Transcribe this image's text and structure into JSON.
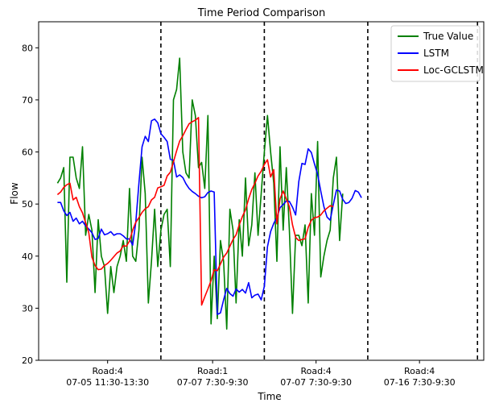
{
  "chart_data": {
    "type": "line",
    "title": "Time Period Comparison",
    "xlabel": "Time",
    "ylabel": "Flow",
    "ylim": [
      20,
      85
    ],
    "yticks": [
      20,
      30,
      40,
      50,
      60,
      70,
      80
    ],
    "xlim": [
      -6,
      136
    ],
    "grid": false,
    "legend_position": "top-right",
    "period_separators": [
      33,
      66,
      99,
      134
    ],
    "period_labels": [
      {
        "x": 16,
        "road": "Road:4",
        "time": "07-05 11:30-13:30"
      },
      {
        "x": 49.5,
        "road": "Road:1",
        "time": "07-07 7:30-9:30"
      },
      {
        "x": 82.5,
        "road": "Road:4",
        "time": "07-07 7:30-9:30"
      },
      {
        "x": 115.5,
        "road": "Road:4",
        "time": "07-16 7:30-9:30"
      }
    ],
    "series": [
      {
        "name": "True Value",
        "color": "#008000",
        "values": [
          54,
          55,
          57,
          35,
          59,
          59,
          55,
          53,
          61,
          44,
          48,
          45,
          33,
          47,
          40,
          38,
          29,
          38,
          33,
          38,
          40,
          43,
          39,
          53,
          40,
          39,
          45,
          59,
          52,
          31,
          39,
          49,
          38,
          45,
          48,
          49,
          38,
          70,
          72,
          78,
          60,
          56,
          55,
          70,
          67,
          57,
          58,
          53,
          67,
          27,
          40,
          28,
          43,
          39,
          26,
          49,
          45,
          31,
          47,
          40,
          55,
          42,
          46,
          56,
          44,
          52,
          60,
          67,
          60,
          54,
          39,
          61,
          45,
          57,
          45,
          29,
          44,
          44,
          42,
          46,
          31,
          52,
          44,
          62,
          36,
          40,
          43,
          45,
          55,
          59,
          43,
          52
        ],
        "x0": 0
      },
      {
        "name": "LSTM",
        "color": "#0000ff",
        "values": [
          50.3,
          50.3,
          48.7,
          47.8,
          48.4,
          46.7,
          47.3,
          46.2,
          46.7,
          45.8,
          45.2,
          44.5,
          43.2,
          43.4,
          45.2,
          44.1,
          44.3,
          44.7,
          44.0,
          44.3,
          44.3,
          43.9,
          43.3,
          43.3,
          42.1,
          46.5,
          54.0,
          61.0,
          63.0,
          62.0,
          66.0,
          66.3,
          65.6,
          63.5,
          62.8,
          62.0,
          58.6,
          58.4,
          55.2,
          55.6,
          55.1,
          53.9,
          53.0,
          52.4,
          52.0,
          51.5,
          51.2,
          51.4,
          52.2,
          52.5,
          52.3,
          28.8,
          29.1,
          31.6,
          33.8,
          32.8,
          32.3,
          33.7,
          33.1,
          33.6,
          32.9,
          34.9,
          32.0,
          32.5,
          32.7,
          31.6,
          34.2,
          41.8,
          44.7,
          46.3,
          47.4,
          49.3,
          49.9,
          50.6,
          50.5,
          49.4,
          47.9,
          54.3,
          57.8,
          57.6,
          60.6,
          59.9,
          57.7,
          55.7,
          52.5,
          49.5,
          47.5,
          46.9,
          49.9,
          52.7,
          52.5,
          50.9,
          50.1,
          50.3,
          51.1,
          52.6,
          52.3,
          51.2
        ],
        "x0": 0
      },
      {
        "name": "Loc-GCLSTM",
        "color": "#ff0000",
        "values": [
          51.8,
          52.3,
          53.2,
          53.7,
          54.0,
          50.8,
          51.3,
          49.5,
          48.3,
          46.4,
          44.5,
          39.8,
          38.2,
          37.4,
          37.5,
          38.2,
          38.6,
          39.2,
          39.9,
          40.6,
          41.0,
          42.0,
          41.9,
          42.9,
          45.0,
          46.5,
          47.4,
          48.4,
          49.1,
          49.5,
          50.8,
          51.3,
          53.1,
          53.3,
          53.6,
          55.4,
          56.1,
          58.1,
          60.2,
          62.1,
          63.1,
          64.3,
          65.4,
          65.8,
          66.1,
          66.6,
          30.6,
          32.2,
          33.7,
          35.3,
          37.4,
          37.2,
          38.5,
          39.8,
          40.6,
          41.9,
          43.2,
          44.1,
          46.0,
          47.6,
          48.9,
          51.0,
          52.8,
          54.0,
          55.4,
          56.3,
          57.6,
          58.5,
          55.2,
          56.6,
          46.2,
          51.0,
          52.5,
          51.0,
          49.5,
          46.0,
          43.6,
          43.0,
          43.2,
          43.3,
          45.5,
          46.9,
          47.4,
          47.5,
          47.9,
          48.7,
          49.2,
          49.7,
          49.5
        ],
        "x0": 0
      }
    ]
  }
}
